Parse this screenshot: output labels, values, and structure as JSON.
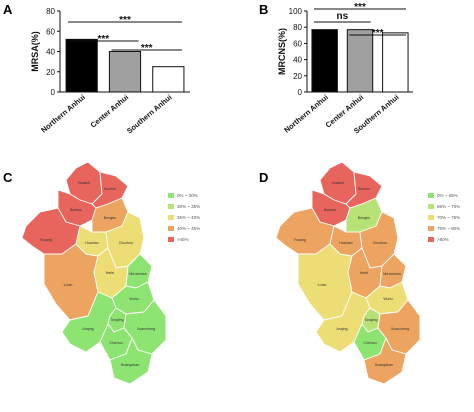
{
  "panels": {
    "A": "A",
    "B": "B",
    "C": "C",
    "D": "D"
  },
  "colors": {
    "red": "#e8655e",
    "orange": "#eea461",
    "yellow": "#ecdd74",
    "lightgreen": "#b6e276",
    "green": "#8ee471"
  },
  "chart_data": [
    {
      "panel": "A",
      "type": "bar",
      "categories": [
        "Northern Anhui",
        "Center Anhui",
        "Southern Anhui"
      ],
      "values": [
        52,
        40,
        25
      ],
      "bar_colors": [
        "#000000",
        "#a0a0a0",
        "#ffffff"
      ],
      "ylabel": "MRSA(%)",
      "ylim": [
        0,
        80
      ],
      "yticks": [
        0,
        20,
        40,
        60,
        80
      ],
      "significance": [
        {
          "from": 0,
          "to": 2,
          "label": "***"
        },
        {
          "from": 0,
          "to": 1,
          "label": "***"
        },
        {
          "from": 1,
          "to": 2,
          "label": "***"
        }
      ]
    },
    {
      "panel": "B",
      "type": "bar",
      "categories": [
        "Northern Anhui",
        "Center Anhui",
        "Southern Anhui"
      ],
      "values": [
        77,
        77,
        73
      ],
      "bar_colors": [
        "#000000",
        "#a0a0a0",
        "#ffffff"
      ],
      "ylabel": "MRCNS(%)",
      "ylim": [
        0,
        100
      ],
      "yticks": [
        0,
        20,
        40,
        60,
        80,
        100
      ],
      "significance": [
        {
          "from": 0,
          "to": 2,
          "label": "***"
        },
        {
          "from": 0,
          "to": 1,
          "label": "ns"
        },
        {
          "from": 1,
          "to": 2,
          "label": "***"
        }
      ]
    }
  ],
  "maps": {
    "C": {
      "legend": [
        {
          "label": "0% ~ 30%",
          "color": "green"
        },
        {
          "label": "30% ~ 35%",
          "color": "lightgreen"
        },
        {
          "label": "35% ~ 40%",
          "color": "yellow"
        },
        {
          "label": "40% ~ 45%",
          "color": "orange"
        },
        {
          "label": ">45%",
          "color": "red"
        }
      ],
      "regions": [
        {
          "name": "Huaibei",
          "color": "red"
        },
        {
          "name": "Suzhou",
          "color": "red"
        },
        {
          "name": "Bozhou",
          "color": "red"
        },
        {
          "name": "Fuyang",
          "color": "red"
        },
        {
          "name": "Bengbu",
          "color": "orange"
        },
        {
          "name": "Lu'an",
          "color": "orange"
        },
        {
          "name": "Huainan",
          "color": "yellow"
        },
        {
          "name": "Chuzhou",
          "color": "yellow"
        },
        {
          "name": "Hefei",
          "color": "yellow"
        },
        {
          "name": "Ma'anshan",
          "color": "green"
        },
        {
          "name": "Wuhu",
          "color": "green"
        },
        {
          "name": "Anqing",
          "color": "green"
        },
        {
          "name": "Tongling",
          "color": "green"
        },
        {
          "name": "Chizhou",
          "color": "green"
        },
        {
          "name": "Xuancheng",
          "color": "green"
        },
        {
          "name": "Huangshan",
          "color": "green"
        }
      ]
    },
    "D": {
      "legend": [
        {
          "label": "0% ~ 65%",
          "color": "green"
        },
        {
          "label": "65% ~ 70%",
          "color": "lightgreen"
        },
        {
          "label": "70% ~ 75%",
          "color": "yellow"
        },
        {
          "label": "75% ~ 80%",
          "color": "orange"
        },
        {
          "label": ">80%",
          "color": "red"
        }
      ],
      "regions": [
        {
          "name": "Huaibei",
          "color": "red"
        },
        {
          "name": "Suzhou",
          "color": "red"
        },
        {
          "name": "Bozhou",
          "color": "red"
        },
        {
          "name": "Fuyang",
          "color": "orange"
        },
        {
          "name": "Bengbu",
          "color": "lightgreen"
        },
        {
          "name": "Lu'an",
          "color": "yellow"
        },
        {
          "name": "Huainan",
          "color": "orange"
        },
        {
          "name": "Chuzhou",
          "color": "orange"
        },
        {
          "name": "Hefei",
          "color": "orange"
        },
        {
          "name": "Ma'anshan",
          "color": "orange"
        },
        {
          "name": "Wuhu",
          "color": "yellow"
        },
        {
          "name": "Anqing",
          "color": "yellow"
        },
        {
          "name": "Tongling",
          "color": "lightgreen"
        },
        {
          "name": "Chizhou",
          "color": "green"
        },
        {
          "name": "Xuancheng",
          "color": "orange"
        },
        {
          "name": "Huangshan",
          "color": "orange"
        }
      ]
    }
  }
}
